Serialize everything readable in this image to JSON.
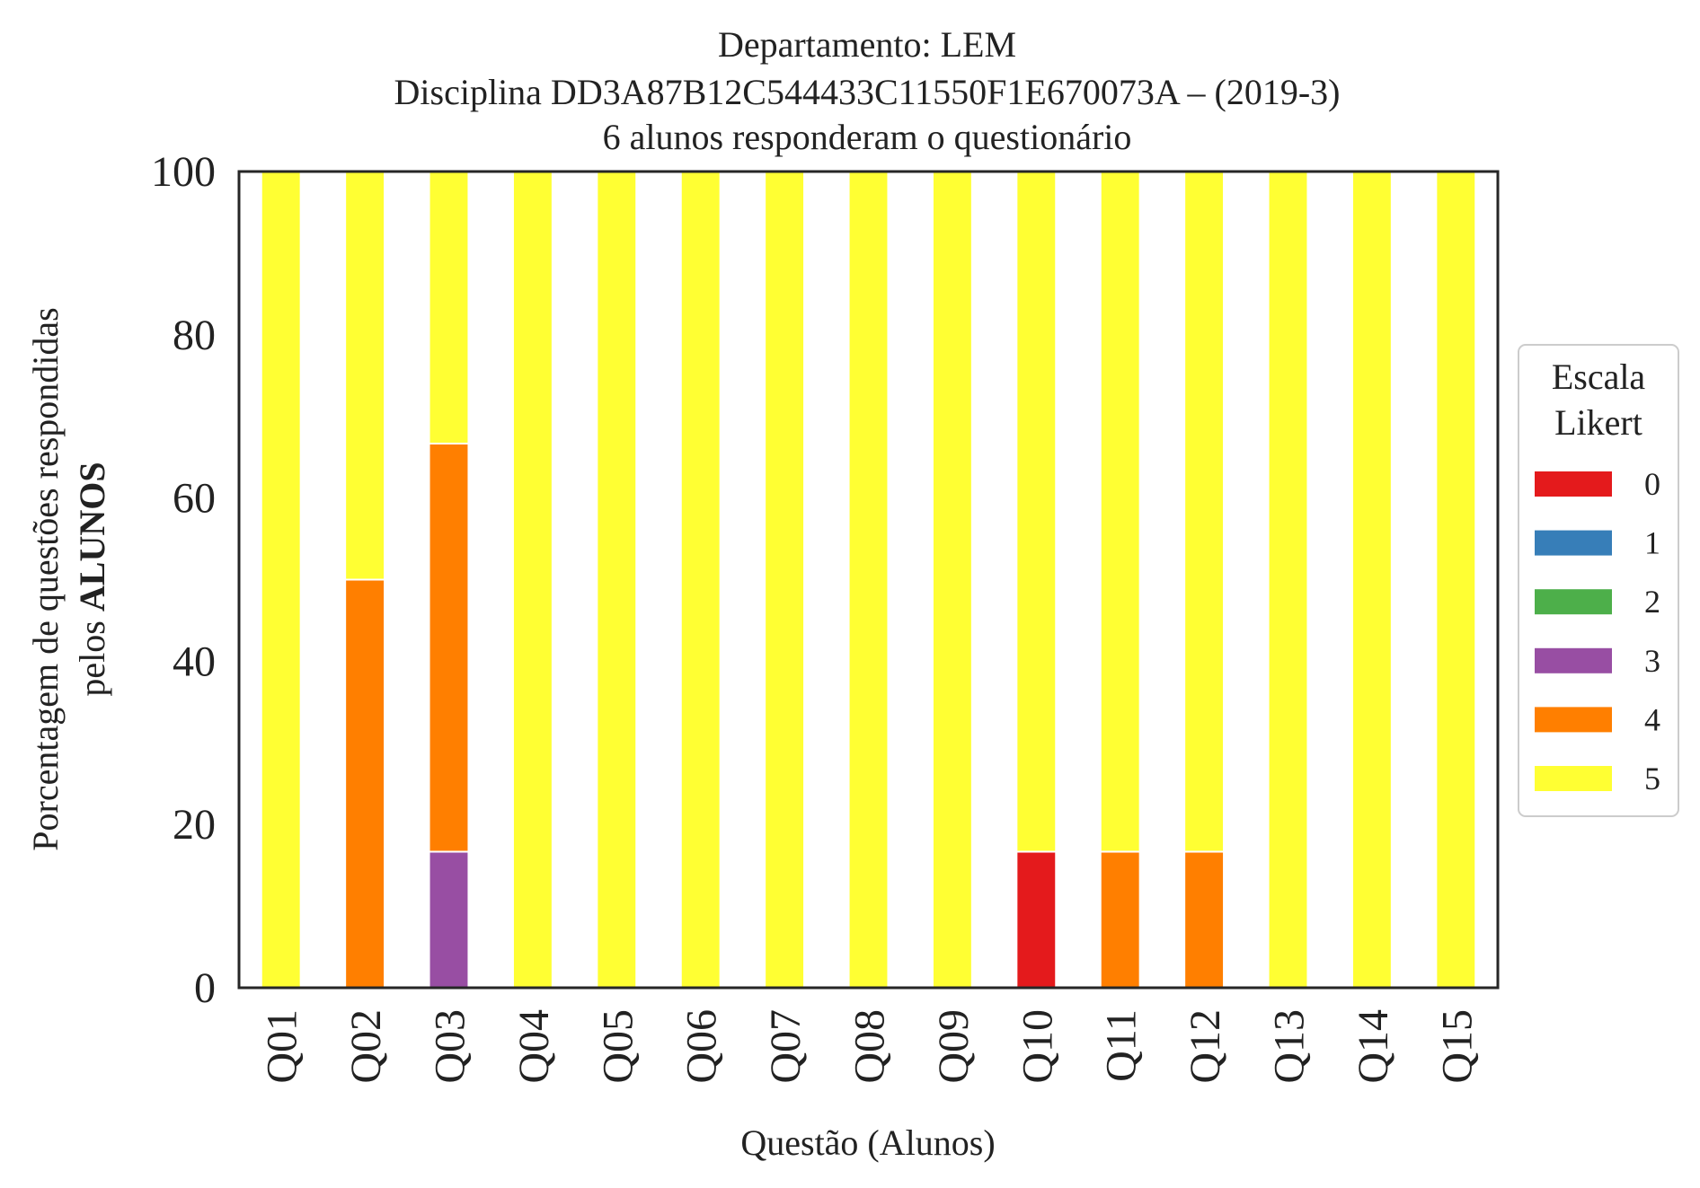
{
  "chart_data": {
    "type": "bar",
    "stacked": true,
    "title_lines": [
      "Departamento: LEM",
      "Disciplina DD3A87B12C544433C11550F1E670073A – (2019-3)",
      "6 alunos responderam o questionário"
    ],
    "xlabel": "Questão (Alunos)",
    "ylabel_line1": "Porcentagem de questões respondidas",
    "ylabel_line2_prefix": "pelos ",
    "ylabel_line2_bold": "ALUNOS",
    "ylim": [
      0,
      100
    ],
    "yticks": [
      "0",
      "20",
      "40",
      "60",
      "80",
      "100"
    ],
    "categories": [
      "Q01",
      "Q02",
      "Q03",
      "Q04",
      "Q05",
      "Q06",
      "Q07",
      "Q08",
      "Q09",
      "Q10",
      "Q11",
      "Q12",
      "Q13",
      "Q14",
      "Q15"
    ],
    "legend": {
      "title_lines": [
        "Escala",
        "Likert"
      ],
      "placement": "center-right, outside plot"
    },
    "series": [
      {
        "name": "0",
        "color": "#e41a1c",
        "values": [
          0,
          0,
          0,
          0,
          0,
          0,
          0,
          0,
          0,
          16.67,
          0,
          0,
          0,
          0,
          0
        ]
      },
      {
        "name": "1",
        "color": "#377eb8",
        "values": [
          0,
          0,
          0,
          0,
          0,
          0,
          0,
          0,
          0,
          0,
          0,
          0,
          0,
          0,
          0
        ]
      },
      {
        "name": "2",
        "color": "#4daf4a",
        "values": [
          0,
          0,
          0,
          0,
          0,
          0,
          0,
          0,
          0,
          0,
          0,
          0,
          0,
          0,
          0
        ]
      },
      {
        "name": "3",
        "color": "#984ea3",
        "values": [
          0,
          0,
          16.67,
          0,
          0,
          0,
          0,
          0,
          0,
          0,
          0,
          0,
          0,
          0,
          0
        ]
      },
      {
        "name": "4",
        "color": "#ff7f00",
        "values": [
          0,
          50,
          50,
          0,
          0,
          0,
          0,
          0,
          0,
          0,
          16.67,
          16.67,
          0,
          0,
          0
        ]
      },
      {
        "name": "5",
        "color": "#ffff33",
        "values": [
          100,
          50,
          33.33,
          100,
          100,
          100,
          100,
          100,
          100,
          83.33,
          83.33,
          83.33,
          100,
          100,
          100
        ]
      }
    ],
    "grid": false
  }
}
